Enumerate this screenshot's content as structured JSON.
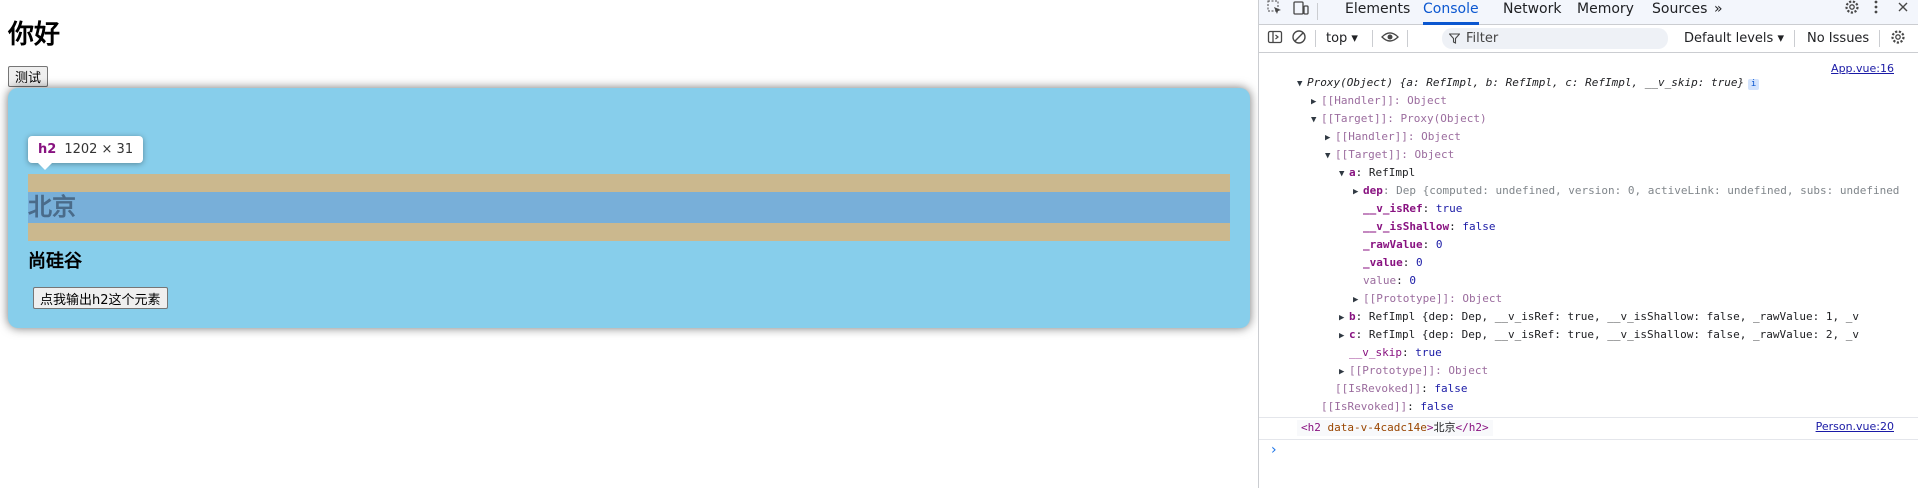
{
  "app": {
    "title": "你好",
    "test_button": "测试",
    "h2_text": "北京",
    "h3_text": "尚硅谷",
    "output_button": "点我输出h2这个元素",
    "tooltip": {
      "tag": "h2",
      "dims": "1202 × 31"
    }
  },
  "devtools": {
    "tabs": [
      "Elements",
      "Console",
      "Network",
      "Memory",
      "Sources"
    ],
    "active_tab": "Console",
    "more_tabs": "»",
    "icons": {
      "inspect": "inspect-element-icon",
      "device": "device-toggle-icon",
      "settings": "gear-icon",
      "menu": "kebab-menu-icon",
      "close": "close-icon",
      "sidebar": "sidebar-toggle-icon",
      "clear": "clear-console-icon",
      "eye": "live-expression-eye-icon",
      "filter": "filter-icon",
      "console_settings": "console-settings-gear-icon"
    },
    "toolbar": {
      "context": "top ▾",
      "filter_placeholder": "Filter",
      "levels": "Default levels ▾",
      "issues": "No Issues"
    },
    "console": {
      "src1": "App.vue:16",
      "lines": {
        "l1_head": "Proxy(Object)",
        "l1_preview": " {a: RefImpl, b: RefImpl, c: RefImpl, __v_skip: true}",
        "l1_badge": "i",
        "l2": "[[Handler]]: Object",
        "l3": "[[Target]]: Proxy(Object)",
        "l4": "[[Handler]]: Object",
        "l5": "[[Target]]: Object",
        "l6_key": "a",
        "l6_val": ": RefImpl",
        "l7_key": "dep",
        "l7_val": ": Dep  {computed: undefined, version: 0, activeLink: undefined, subs: undefined",
        "l8_key": "__v_isRef",
        "l8_val": "true",
        "l9_key": "__v_isShallow",
        "l9_val": "false",
        "l10_key": "_rawValue",
        "l10_val": "0",
        "l11_key": "_value",
        "l11_val": "0",
        "l12_key": "value",
        "l12_val": "0",
        "l13": "[[Prototype]]: Object",
        "l14_key": "b",
        "l14_val": ": RefImpl  {dep: Dep, __v_isRef: true, __v_isShallow: false, _rawValue: 1, _v",
        "l15_key": "c",
        "l15_val": ": RefImpl  {dep: Dep, __v_isRef: true, __v_isShallow: false, _rawValue: 2, _v",
        "l16_key": "__v_skip",
        "l16_val": "true",
        "l17": "[[Prototype]]: Object",
        "l18_key": "[[IsRevoked]]",
        "l18_val": "false",
        "l19_key": "[[IsRevoked]]",
        "l19_val": "false"
      },
      "h2_log": {
        "open_tag": "<h2",
        "attr": " data-v-4cadc14e",
        "close_bracket": ">",
        "text": "北京",
        "end_tag": "</h2>"
      },
      "src2": "Person.vue:20",
      "prompt": "›"
    }
  }
}
